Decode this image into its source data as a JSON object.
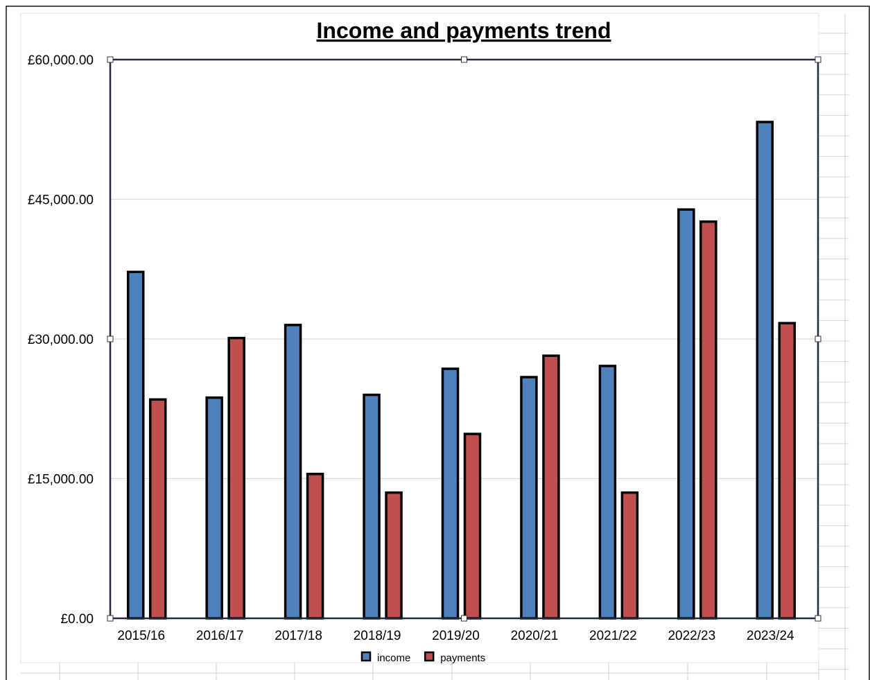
{
  "chart_data": {
    "type": "bar",
    "title": "Income and payments trend",
    "xlabel": "",
    "ylabel": "",
    "categories": [
      "2015/16",
      "2016/17",
      "2017/18",
      "2018/19",
      "2019/20",
      "2020/21",
      "2021/22",
      "2022/23",
      "2023/24"
    ],
    "series": [
      {
        "name": "income",
        "color": "#4f81bd",
        "values": [
          37200,
          23700,
          31500,
          24000,
          26800,
          25900,
          27100,
          43900,
          53300
        ]
      },
      {
        "name": "payments",
        "color": "#c0504d",
        "values": [
          23500,
          30100,
          15500,
          13500,
          19800,
          28200,
          13500,
          42600,
          31700
        ]
      }
    ],
    "ylim": [
      0,
      60000
    ],
    "yticks": [
      0,
      15000,
      30000,
      45000,
      60000
    ],
    "ytick_labels": [
      "£0.00",
      "£15,000.00",
      "£30,000.00",
      "£45,000.00",
      "£60,000.00"
    ],
    "grid": true,
    "legend_position": "bottom"
  }
}
